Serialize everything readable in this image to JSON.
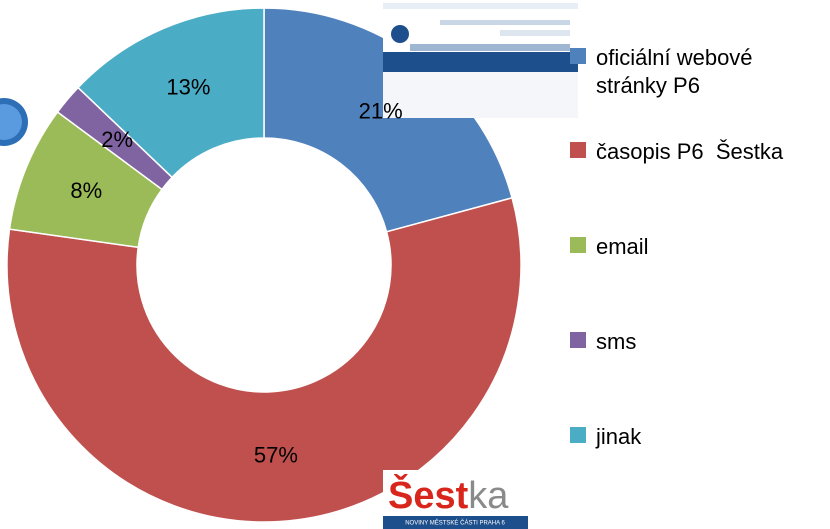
{
  "chart_data": {
    "type": "donut",
    "categories": [
      "oficiální webové stránky P6",
      "časopis P6  Šestka",
      "email",
      "sms",
      "jinak"
    ],
    "values": [
      21,
      57,
      8,
      2,
      13
    ],
    "value_labels": [
      "21%",
      "57%",
      "8%",
      "2%",
      "13%"
    ],
    "colors": [
      "#4f81bd",
      "#c0504d",
      "#9bbb59",
      "#8064a2",
      "#4bacc6"
    ],
    "legend": "right",
    "annotations": [
      "Šest",
      "ka",
      "NOVINY MĚSTSKÉ ČÁSTI PRAHA 6"
    ]
  }
}
